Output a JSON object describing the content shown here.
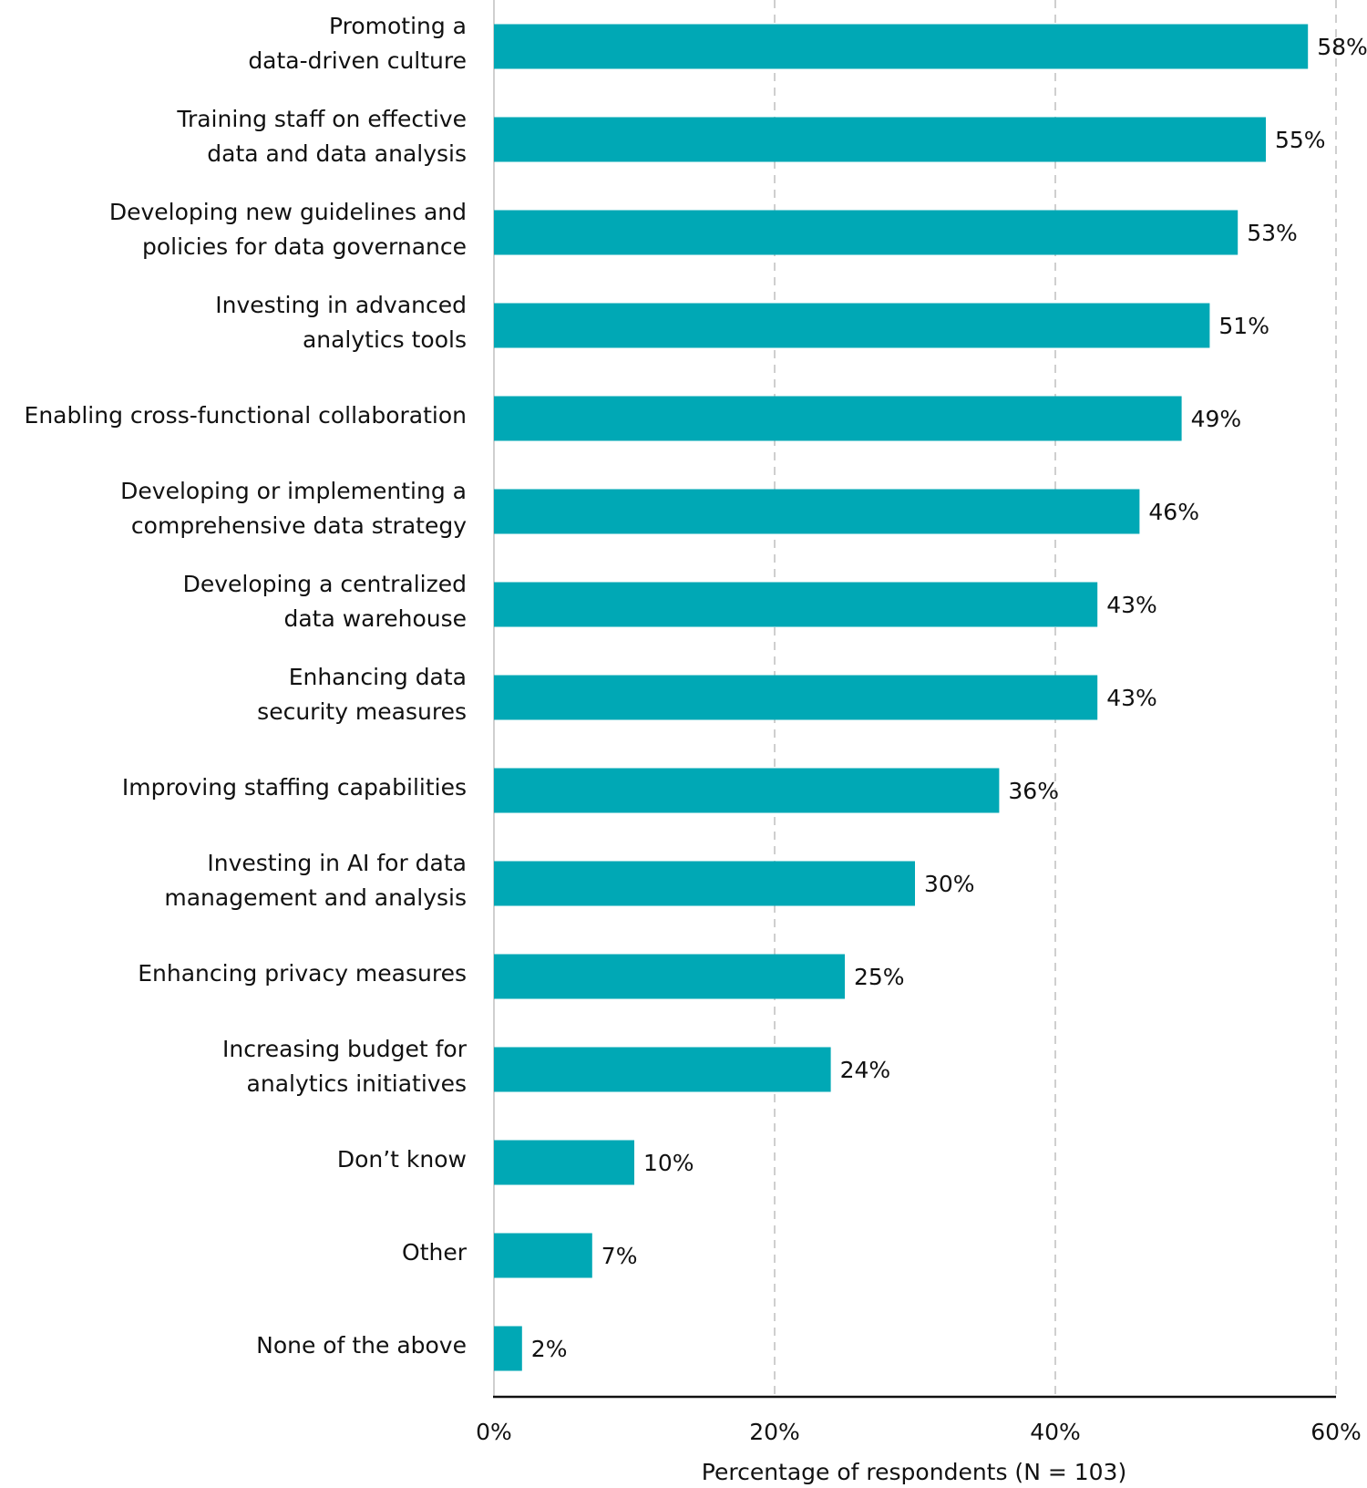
{
  "chart_data": {
    "type": "bar",
    "orientation": "horizontal",
    "x_label": "Percentage of respondents (N = 103)",
    "categories": [
      "Promoting a\ndata-driven culture",
      "Training staff on effective\ndata and data analysis",
      "Developing new guidelines and\npolicies for data governance",
      "Investing in advanced\nanalytics tools",
      "Enabling cross-functional collaboration",
      "Developing or implementing a\ncomprehensive data strategy",
      "Developing a centralized\ndata warehouse",
      "Enhancing data\nsecurity measures",
      "Improving staffing capabilities",
      "Investing in AI for data\nmanagement and analysis",
      "Enhancing privacy measures",
      "Increasing budget for\nanalytics initiatives",
      "Don’t know",
      "Other",
      "None of the above"
    ],
    "values": [
      58,
      55,
      53,
      51,
      49,
      46,
      43,
      43,
      36,
      30,
      25,
      24,
      10,
      7,
      2
    ],
    "value_labels": [
      "58%",
      "55%",
      "53%",
      "51%",
      "49%",
      "46%",
      "43%",
      "43%",
      "36%",
      "30%",
      "25%",
      "24%",
      "10%",
      "7%",
      "2%"
    ],
    "color": "#00a8b5",
    "xlim": [
      0,
      60
    ],
    "xticks": [
      {
        "value": 0,
        "label": "0%"
      },
      {
        "value": 20,
        "label": "20%"
      },
      {
        "value": 40,
        "label": "40%"
      },
      {
        "value": 60,
        "label": "60%"
      }
    ],
    "grid": true
  }
}
